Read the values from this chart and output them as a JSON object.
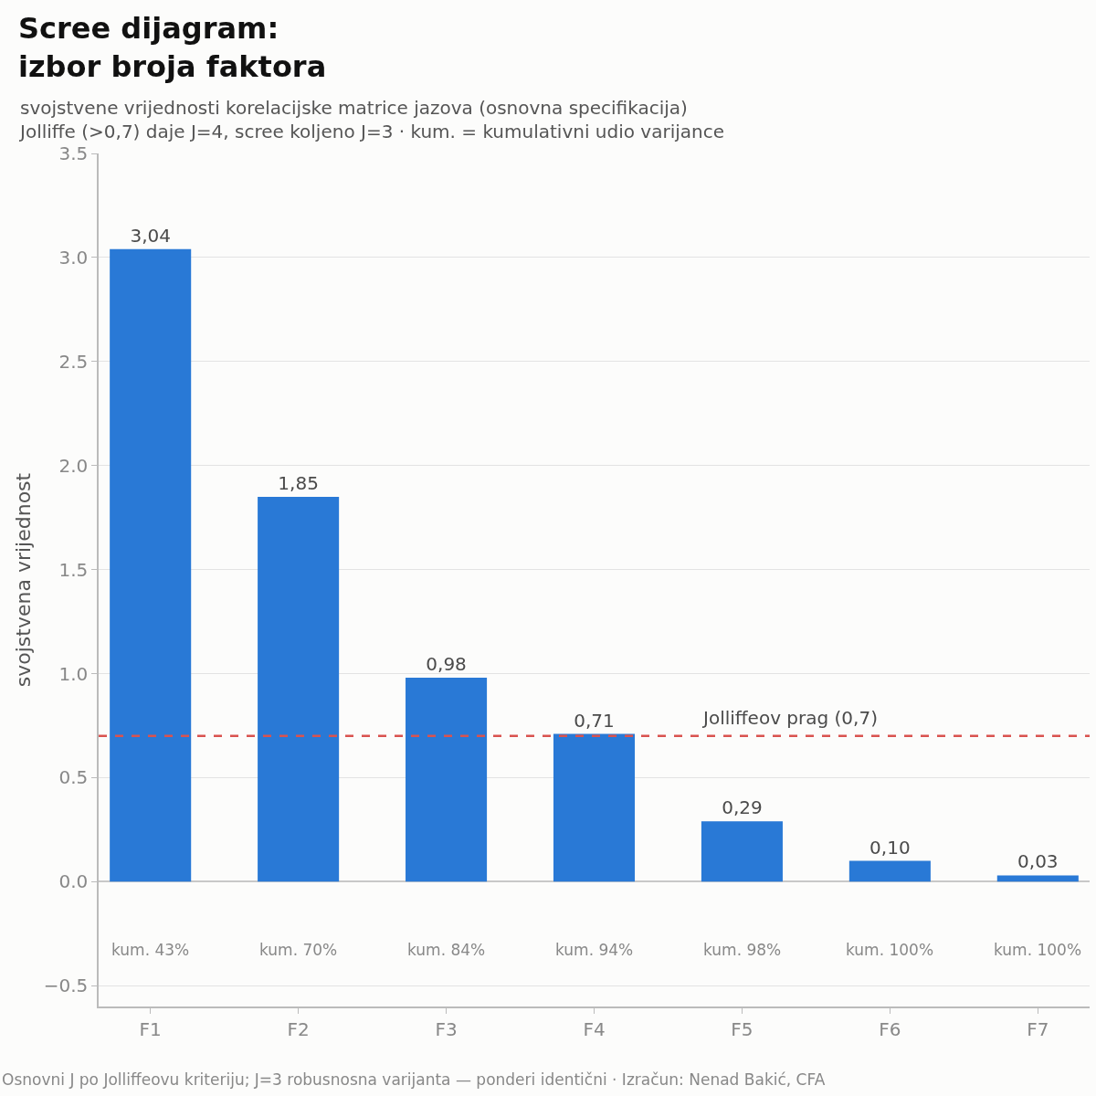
{
  "chart_data": {
    "type": "bar",
    "title": "Scree dijagram:\nizbor broja faktora",
    "subtitle": "svojstvene vrijednosti korelacijske matrice jazova (osnovna specifikacija)\nJolliffe (>0,7) daje J=4, scree koljeno J=3 · kum. = kumulativni udio varijance",
    "ylabel": "svojstvena vrijednost",
    "categories": [
      "F1",
      "F2",
      "F3",
      "F4",
      "F5",
      "F6",
      "F7"
    ],
    "values": [
      3.04,
      1.85,
      0.98,
      0.71,
      0.29,
      0.1,
      0.03
    ],
    "value_labels": [
      "3,04",
      "1,85",
      "0,98",
      "0,71",
      "0,29",
      "0,10",
      "0,03"
    ],
    "color": "#2979d6",
    "ylim": [
      -0.6,
      3.5
    ],
    "yticks": [
      {
        "value": -0.5,
        "label": "−0.5"
      },
      {
        "value": 0,
        "label": "0.0"
      },
      {
        "value": 0.5,
        "label": "0.5"
      },
      {
        "value": 1,
        "label": "1.0"
      },
      {
        "value": 1.5,
        "label": "1.5"
      },
      {
        "value": 2,
        "label": "2.0"
      },
      {
        "value": 2.5,
        "label": "2.5"
      },
      {
        "value": 3,
        "label": "3.0"
      },
      {
        "value": 3.5,
        "label": "3.5"
      }
    ],
    "grid": "y",
    "ref_lines": [
      {
        "axis": "y",
        "value": 0.7,
        "label": "Jolliffeov prag (0,7)",
        "color": "#d9534f",
        "line_style": "dashed"
      }
    ],
    "annotations": [
      "kum. 43%",
      "kum. 70%",
      "kum. 84%",
      "kum. 94%",
      "kum. 98%",
      "kum. 100%",
      "kum. 100%",
      "Osnovni J po Jolliffeovu kriteriju; J=3 robusnosna varijanta — ponderi identični · Izračun: Nenad Bakić, CFA"
    ]
  }
}
